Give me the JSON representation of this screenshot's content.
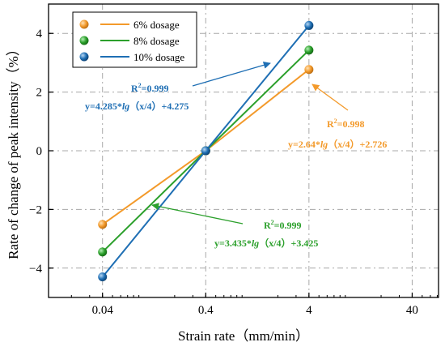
{
  "chart_data": {
    "type": "line",
    "xlabel": "Strain rate（mm/min）",
    "ylabel": "Rate of change of peak intensity（%）",
    "x_scale": "log",
    "xlim": [
      0.012,
      72
    ],
    "ylim": [
      -5,
      5
    ],
    "x_ticks": [
      0.04,
      0.4,
      4,
      40
    ],
    "x_tick_labels": [
      "0.04",
      "0.4",
      "4",
      "40"
    ],
    "y_ticks": [
      -4,
      -2,
      0,
      2,
      4
    ],
    "y_tick_labels": [
      "−4",
      "−2",
      "0",
      "2",
      "4"
    ],
    "grid": true,
    "legend_position": "top-left",
    "x": [
      0.04,
      0.4,
      4
    ],
    "series": [
      {
        "name": "6% dosage",
        "color": "#F39A2B",
        "values": [
          -2.51,
          0.0,
          2.77
        ]
      },
      {
        "name": "8% dosage",
        "color": "#2CA02C",
        "values": [
          -3.45,
          0.0,
          3.43
        ]
      },
      {
        "name": "10% dosage",
        "color": "#1F6FB4",
        "values": [
          -4.3,
          0.0,
          4.27
        ]
      }
    ],
    "fits": [
      {
        "series": "6% dosage",
        "color": "#F39A2B",
        "slope": 2.64,
        "intercept": 2.726
      },
      {
        "series": "8% dosage",
        "color": "#2CA02C",
        "slope": 3.435,
        "intercept": 3.425
      },
      {
        "series": "10% dosage",
        "color": "#1F6FB4",
        "slope": 4.285,
        "intercept": 4.275
      }
    ],
    "annotations": [
      {
        "id": "ann-10",
        "color": "#1F6FB4",
        "r2_prefix": "R",
        "r2_sup": "2",
        "r2_value": "=0.999",
        "eq_prefix": "y=4.285*",
        "eq_func": "lg",
        "eq_rest": "（x/4）+4.275"
      },
      {
        "id": "ann-6",
        "color": "#F39A2B",
        "r2_prefix": "R",
        "r2_sup": "2",
        "r2_value": "=0.998",
        "eq_prefix": "y=2.64*",
        "eq_func": "lg",
        "eq_rest": "（x/4）+2.726"
      },
      {
        "id": "ann-8",
        "color": "#2CA02C",
        "r2_prefix": "R",
        "r2_sup": "2",
        "r2_value": "=0.999",
        "eq_prefix": "y=3.435*",
        "eq_func": "lg",
        "eq_rest": "（x/4）+3.425"
      }
    ]
  }
}
